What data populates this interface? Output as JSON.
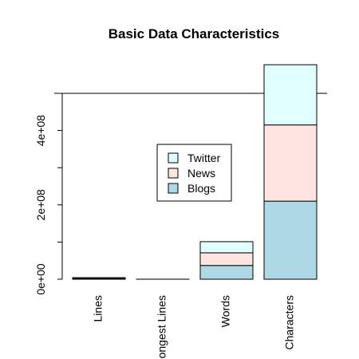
{
  "chart_data": {
    "type": "bar",
    "stacked": true,
    "title": "Basic Data Characteristics",
    "xlabel": "",
    "ylabel": "",
    "categories": [
      "Lines",
      "Longest Lines",
      "Words",
      "Characters"
    ],
    "y_ticks": [
      {
        "value": 0,
        "label": "0e+00"
      },
      {
        "value": 200000000,
        "label": "2e+08"
      },
      {
        "value": 400000000,
        "label": "4e+08"
      }
    ],
    "ylim": [
      0,
      500000000
    ],
    "series": [
      {
        "name": "Blogs",
        "color": "#add8e6",
        "values": [
          900000,
          40000,
          37000000,
          210000000
        ]
      },
      {
        "name": "News",
        "color": "#ffe4e1",
        "values": [
          1000000,
          11000,
          34000000,
          205000000
        ]
      },
      {
        "name": "Twitter",
        "color": "#e0ffff",
        "values": [
          2400000,
          200,
          30000000,
          162000000
        ]
      }
    ],
    "legend_order": [
      "Twitter",
      "News",
      "Blogs"
    ],
    "legend_position": "center",
    "grid": false
  }
}
